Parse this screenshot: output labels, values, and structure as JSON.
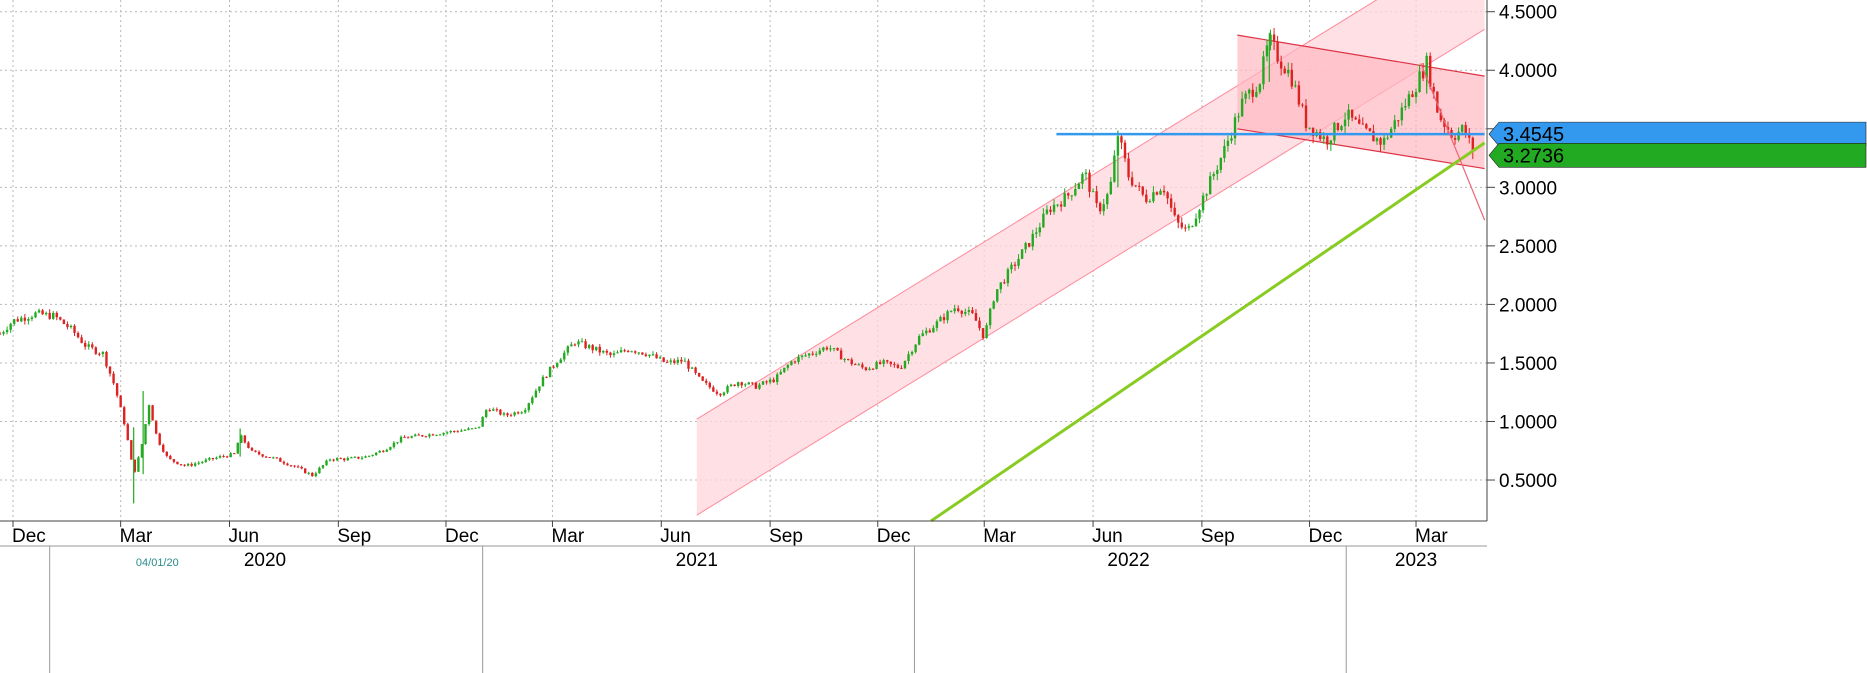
{
  "chart_data": {
    "type": "candlestick-line",
    "title": "",
    "xlabel": "",
    "ylabel": "",
    "ylim": [
      0.15,
      4.6
    ],
    "xlim": [
      "2019-11-20",
      "2023-04-30"
    ],
    "grid": true,
    "y_ticks": [
      "0.5000",
      "1.0000",
      "1.5000",
      "2.0000",
      "2.5000",
      "3.0000",
      "3.5000",
      "4.0000",
      "4.5000"
    ],
    "y_tick_values": [
      0.5,
      1.0,
      1.5,
      2.0,
      2.5,
      3.0,
      3.5,
      4.0,
      4.5
    ],
    "x_month_ticks": [
      {
        "label": "Dec",
        "date": "2019-12-01"
      },
      {
        "label": "Mar",
        "date": "2020-03-01"
      },
      {
        "label": "Jun",
        "date": "2020-06-01"
      },
      {
        "label": "Sep",
        "date": "2020-09-01"
      },
      {
        "label": "Dec",
        "date": "2020-12-01"
      },
      {
        "label": "Mar",
        "date": "2021-03-01"
      },
      {
        "label": "Jun",
        "date": "2021-06-01"
      },
      {
        "label": "Sep",
        "date": "2021-09-01"
      },
      {
        "label": "Dec",
        "date": "2021-12-01"
      },
      {
        "label": "Mar",
        "date": "2022-03-01"
      },
      {
        "label": "Jun",
        "date": "2022-06-01"
      },
      {
        "label": "Sep",
        "date": "2022-09-01"
      },
      {
        "label": "Dec",
        "date": "2022-12-01"
      },
      {
        "label": "Mar",
        "date": "2023-03-01"
      }
    ],
    "x_year_labels": [
      {
        "label": "2020",
        "date": "2020-07-01"
      },
      {
        "label": "2021",
        "date": "2021-07-01"
      },
      {
        "label": "2022",
        "date": "2022-07-01"
      },
      {
        "label": "2023",
        "date": "2023-03-01"
      }
    ],
    "cursor_label": "04/01/20",
    "price_points": [
      [
        "2019-11-20",
        1.75
      ],
      [
        "2019-12-01",
        1.86
      ],
      [
        "2019-12-20",
        1.92
      ],
      [
        "2020-01-05",
        1.9
      ],
      [
        "2020-01-20",
        1.78
      ],
      [
        "2020-02-01",
        1.64
      ],
      [
        "2020-02-15",
        1.58
      ],
      [
        "2020-02-25",
        1.3
      ],
      [
        "2020-03-05",
        0.95
      ],
      [
        "2020-03-12",
        0.55
      ],
      [
        "2020-03-18",
        0.75
      ],
      [
        "2020-03-25",
        1.15
      ],
      [
        "2020-04-01",
        0.85
      ],
      [
        "2020-04-10",
        0.68
      ],
      [
        "2020-04-25",
        0.62
      ],
      [
        "2020-05-10",
        0.66
      ],
      [
        "2020-05-25",
        0.7
      ],
      [
        "2020-06-05",
        0.72
      ],
      [
        "2020-06-10",
        0.88
      ],
      [
        "2020-06-20",
        0.74
      ],
      [
        "2020-07-10",
        0.68
      ],
      [
        "2020-07-25",
        0.62
      ],
      [
        "2020-08-10",
        0.54
      ],
      [
        "2020-08-25",
        0.68
      ],
      [
        "2020-09-10",
        0.68
      ],
      [
        "2020-09-25",
        0.7
      ],
      [
        "2020-10-10",
        0.76
      ],
      [
        "2020-10-25",
        0.86
      ],
      [
        "2020-11-10",
        0.88
      ],
      [
        "2020-11-25",
        0.9
      ],
      [
        "2020-12-10",
        0.92
      ],
      [
        "2020-12-28",
        0.94
      ],
      [
        "2021-01-05",
        1.12
      ],
      [
        "2021-01-20",
        1.05
      ],
      [
        "2021-02-05",
        1.1
      ],
      [
        "2021-02-20",
        1.35
      ],
      [
        "2021-03-05",
        1.52
      ],
      [
        "2021-03-20",
        1.68
      ],
      [
        "2021-04-05",
        1.62
      ],
      [
        "2021-04-20",
        1.56
      ],
      [
        "2021-05-05",
        1.62
      ],
      [
        "2021-05-20",
        1.58
      ],
      [
        "2021-06-05",
        1.5
      ],
      [
        "2021-06-20",
        1.52
      ],
      [
        "2021-07-05",
        1.34
      ],
      [
        "2021-07-20",
        1.24
      ],
      [
        "2021-08-05",
        1.34
      ],
      [
        "2021-08-20",
        1.3
      ],
      [
        "2021-09-05",
        1.36
      ],
      [
        "2021-09-20",
        1.52
      ],
      [
        "2021-10-05",
        1.58
      ],
      [
        "2021-10-20",
        1.64
      ],
      [
        "2021-11-05",
        1.52
      ],
      [
        "2021-11-20",
        1.45
      ],
      [
        "2021-12-05",
        1.5
      ],
      [
        "2021-12-20",
        1.46
      ],
      [
        "2022-01-05",
        1.72
      ],
      [
        "2022-01-20",
        1.84
      ],
      [
        "2022-02-05",
        1.98
      ],
      [
        "2022-02-20",
        1.9
      ],
      [
        "2022-03-01",
        1.72
      ],
      [
        "2022-03-10",
        2.1
      ],
      [
        "2022-03-25",
        2.32
      ],
      [
        "2022-04-10",
        2.56
      ],
      [
        "2022-04-25",
        2.82
      ],
      [
        "2022-05-10",
        2.92
      ],
      [
        "2022-05-25",
        3.12
      ],
      [
        "2022-06-05",
        2.8
      ],
      [
        "2022-06-15",
        2.96
      ],
      [
        "2022-06-22",
        3.45
      ],
      [
        "2022-07-01",
        3.1
      ],
      [
        "2022-07-15",
        2.9
      ],
      [
        "2022-07-30",
        3.02
      ],
      [
        "2022-08-10",
        2.7
      ],
      [
        "2022-08-20",
        2.62
      ],
      [
        "2022-09-05",
        2.98
      ],
      [
        "2022-09-20",
        3.32
      ],
      [
        "2022-10-05",
        3.72
      ],
      [
        "2022-10-20",
        3.92
      ],
      [
        "2022-10-28",
        4.26
      ],
      [
        "2022-11-05",
        4.1
      ],
      [
        "2022-11-15",
        3.96
      ],
      [
        "2022-11-28",
        3.55
      ],
      [
        "2022-12-15",
        3.4
      ],
      [
        "2023-01-01",
        3.62
      ],
      [
        "2023-01-15",
        3.48
      ],
      [
        "2023-02-01",
        3.38
      ],
      [
        "2023-02-15",
        3.62
      ],
      [
        "2023-03-01",
        3.88
      ],
      [
        "2023-03-10",
        4.06
      ],
      [
        "2023-03-20",
        3.62
      ],
      [
        "2023-04-01",
        3.44
      ],
      [
        "2023-04-10",
        3.5
      ],
      [
        "2023-04-20",
        3.27
      ]
    ],
    "spikes": [
      [
        "2020-03-12",
        0.3,
        0.95
      ],
      [
        "2020-03-20",
        0.55,
        1.26
      ],
      [
        "2020-06-10",
        0.7,
        0.94
      ],
      [
        "2022-06-22",
        3.0,
        3.48
      ],
      [
        "2022-10-28",
        3.9,
        4.32
      ],
      [
        "2023-03-10",
        3.8,
        4.1
      ]
    ],
    "up_color": "#22aa22",
    "down_color": "#dd2222",
    "trend_channel": {
      "start_date": "2021-07-01",
      "end_date": "2023-04-28",
      "lower_start": 0.2,
      "lower_end": 4.35,
      "width": 0.82,
      "fill": "#ffd6dc",
      "stroke": "#ff8a9a"
    },
    "down_channel": {
      "start_date": "2022-10-01",
      "end_date": "2023-04-28",
      "upper_start": 4.3,
      "upper_end": 3.95,
      "lower_start": 3.5,
      "lower_end": 3.16,
      "fill": "#ffb8c2",
      "stroke": "#dd3344"
    },
    "resistance_line": {
      "start_date": "2022-05-01",
      "end_date": "2023-04-28",
      "value": 3.4545,
      "color": "#3399ee"
    },
    "support_line": {
      "start_date": "2022-01-15",
      "end_date": "2023-04-28",
      "start_value": 0.15,
      "end_value": 3.38,
      "color": "#88cc22"
    },
    "decline_line": {
      "start_date": "2023-03-05",
      "end_date": "2023-04-28",
      "start_value": 4.06,
      "end_value": 2.72,
      "color": "#ee6677"
    },
    "tags": [
      {
        "label": "3.4545",
        "value": 3.4545,
        "color": "#3399ee"
      },
      {
        "label": "3.2736",
        "value": 3.2736,
        "color": "#22aa22"
      }
    ]
  }
}
